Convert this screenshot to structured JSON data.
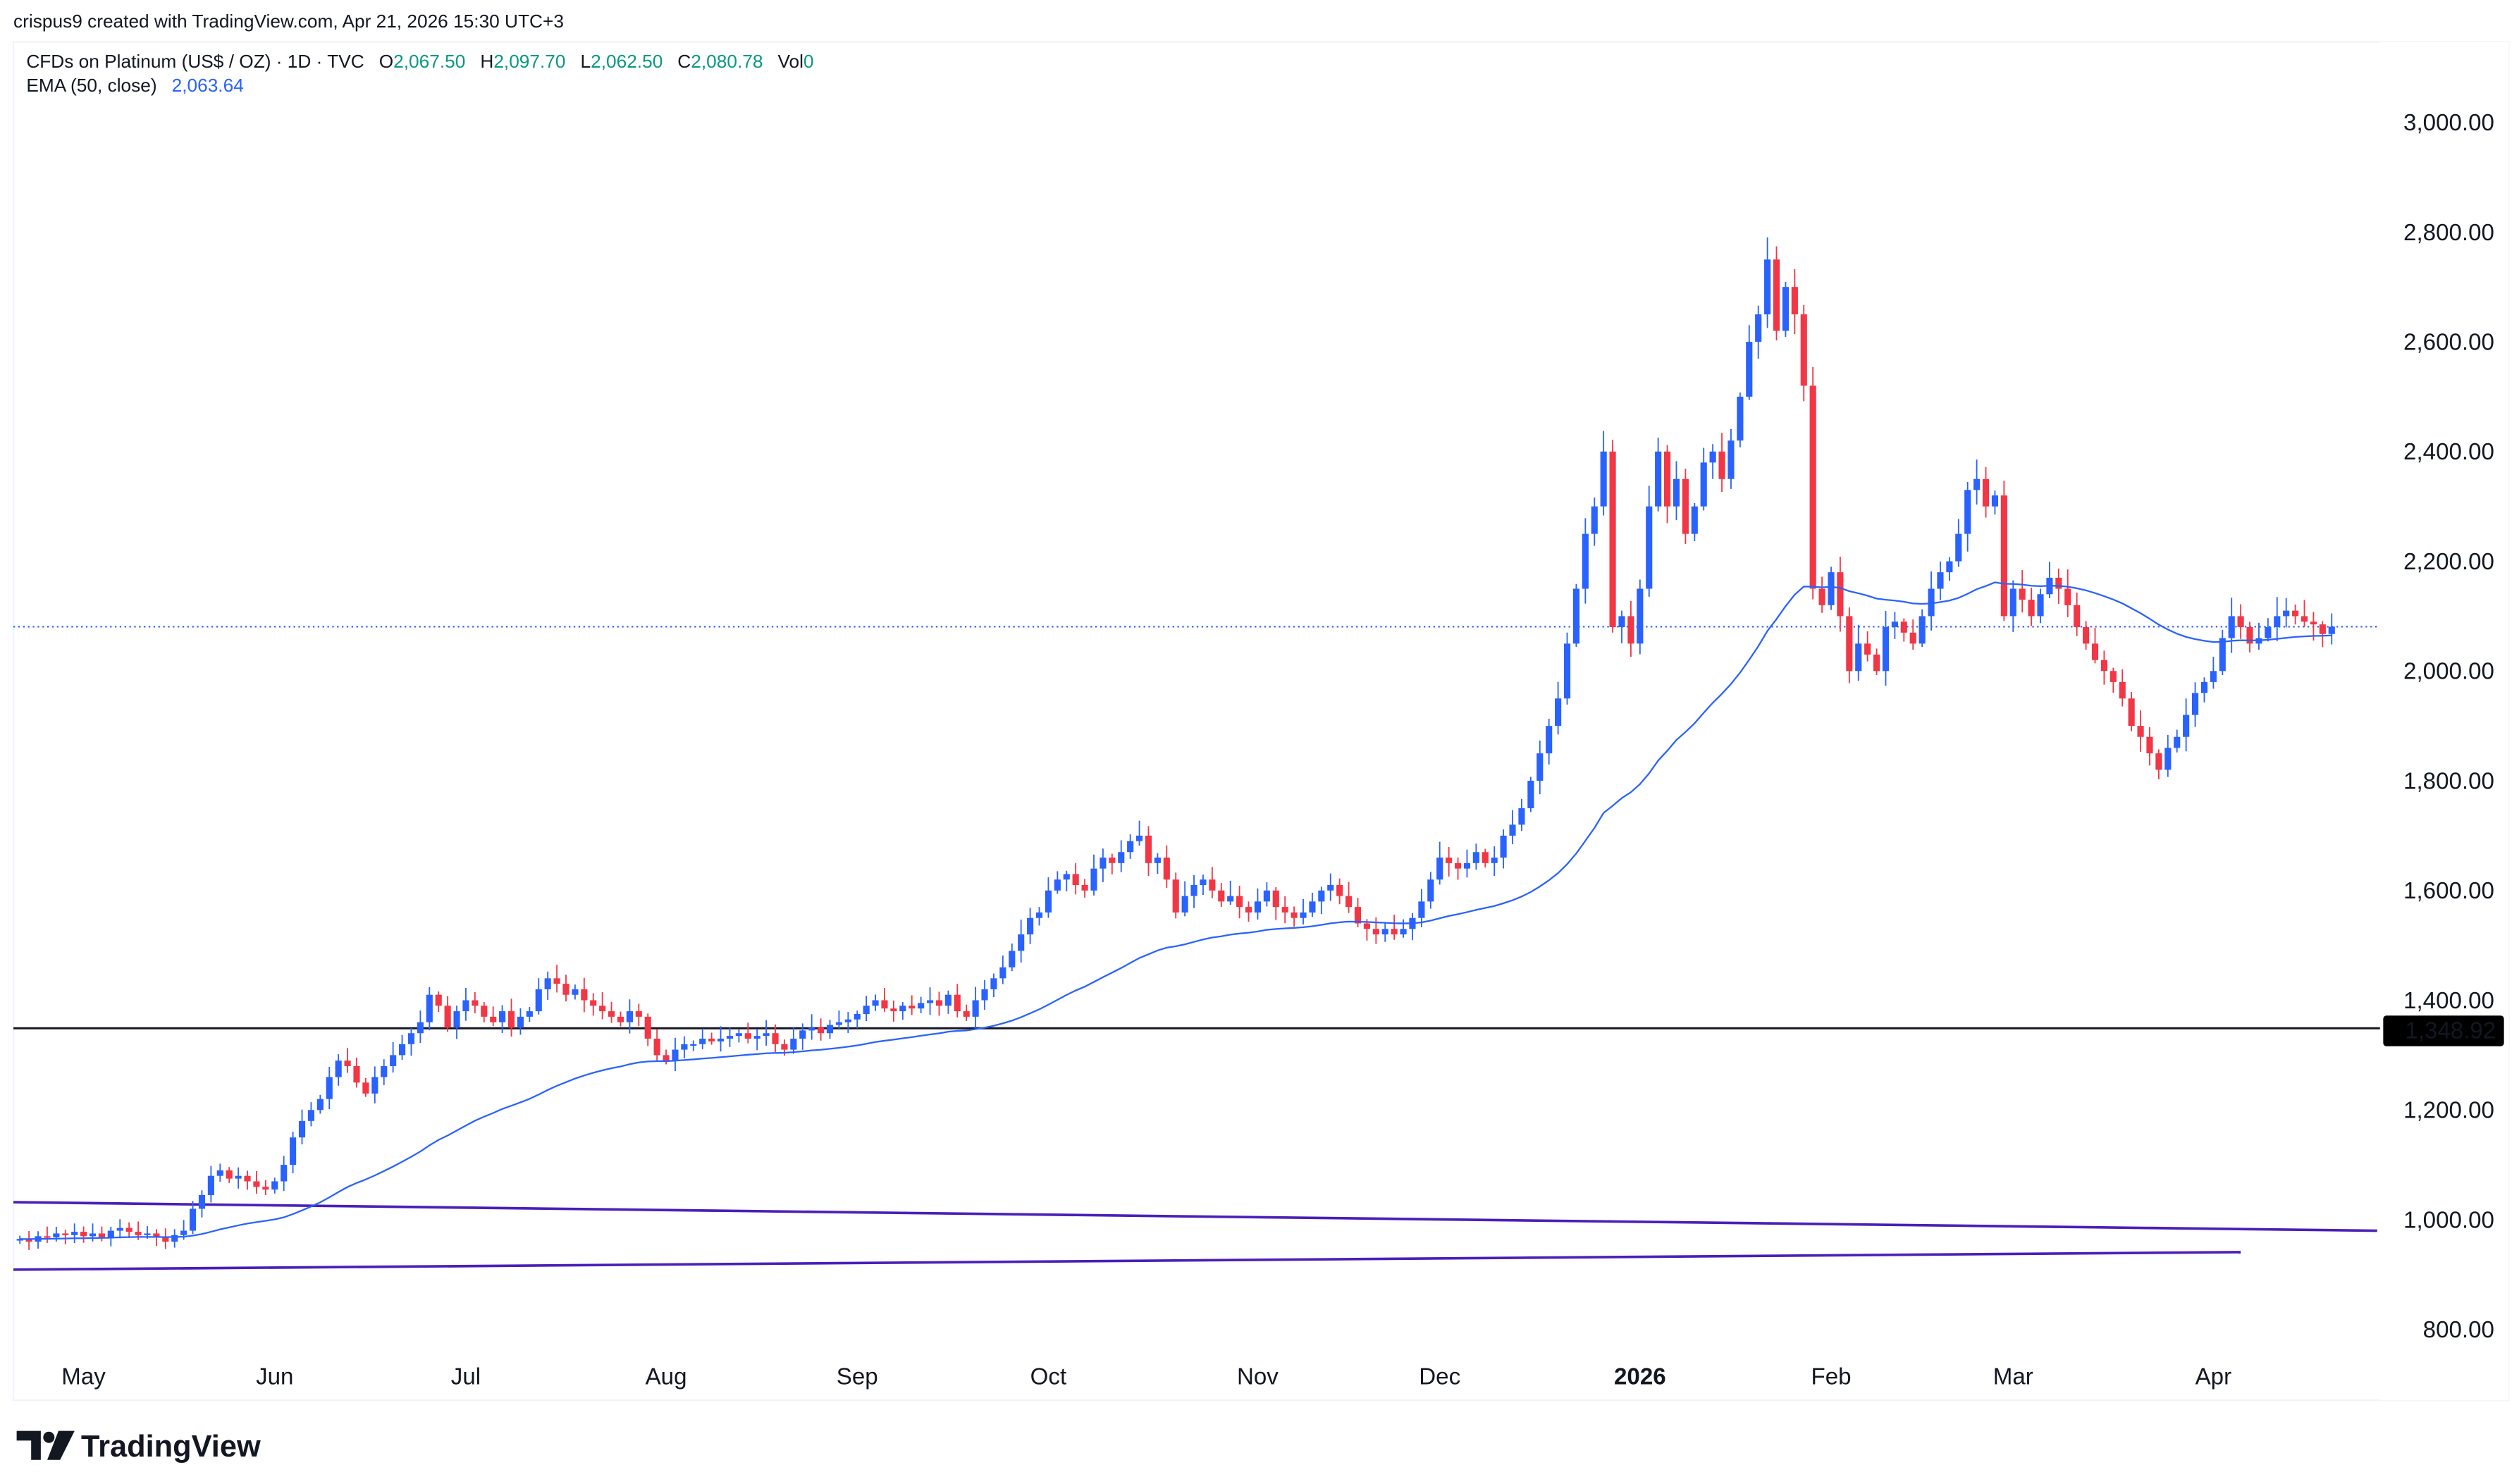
{
  "header": {
    "credit": "crispus9 created with TradingView.com, Apr 21, 2026 15:30 UTC+3",
    "symbol": "CFDs on Platinum (US$ / OZ) · 1D · TVC",
    "o_label": "O",
    "o_value": "2,067.50",
    "h_label": "H",
    "h_value": "2,097.70",
    "l_label": "L",
    "l_value": "2,062.50",
    "c_label": "C",
    "c_value": "2,080.78",
    "vol_label": "Vol",
    "vol_value": "0",
    "ema_label": "EMA (50, close)",
    "ema_value": "2,063.64"
  },
  "logo": {
    "text": "TradingView"
  },
  "colors": {
    "up": "#2962ff",
    "down": "#f23645",
    "ema": "#2962ff",
    "value_green": "#089981",
    "trendline": "#4a1fb8",
    "hline": "#131722"
  },
  "chart_data": {
    "type": "candlestick",
    "title": "CFDs on Platinum (US$ / OZ) · 1D · TVC",
    "ylim": [
      760,
      3100
    ],
    "y_ticks": [
      "3,000.00",
      "2,800.00",
      "2,600.00",
      "2,400.00",
      "2,200.00",
      "2,000.00",
      "1,800.00",
      "1,600.00",
      "1,400.00",
      "1,200.00",
      "1,000.00",
      "800.00"
    ],
    "y_tick_values": [
      3000,
      2800,
      2600,
      2400,
      2200,
      2000,
      1800,
      1600,
      1400,
      1200,
      1000,
      800
    ],
    "x_ticks": [
      {
        "label": "May",
        "index": 7
      },
      {
        "label": "Jun",
        "index": 28
      },
      {
        "label": "Jul",
        "index": 49
      },
      {
        "label": "Aug",
        "index": 71
      },
      {
        "label": "Sep",
        "index": 92
      },
      {
        "label": "Oct",
        "index": 113
      },
      {
        "label": "Nov",
        "index": 136
      },
      {
        "label": "Dec",
        "index": 156
      },
      {
        "label": "2026",
        "index": 178,
        "bold": true
      },
      {
        "label": "Feb",
        "index": 199
      },
      {
        "label": "Mar",
        "index": 219
      },
      {
        "label": "Apr",
        "index": 241
      }
    ],
    "closes": [
      965,
      960,
      970,
      968,
      975,
      972,
      978,
      970,
      975,
      968,
      980,
      985,
      978,
      972,
      975,
      968,
      960,
      972,
      980,
      1020,
      1045,
      1080,
      1090,
      1075,
      1080,
      1070,
      1060,
      1055,
      1070,
      1100,
      1150,
      1180,
      1200,
      1220,
      1260,
      1290,
      1280,
      1250,
      1230,
      1260,
      1280,
      1300,
      1320,
      1340,
      1360,
      1410,
      1390,
      1350,
      1380,
      1400,
      1390,
      1370,
      1360,
      1380,
      1350,
      1370,
      1380,
      1420,
      1440,
      1430,
      1410,
      1420,
      1400,
      1390,
      1380,
      1370,
      1360,
      1380,
      1370,
      1330,
      1300,
      1290,
      1310,
      1320,
      1320,
      1330,
      1325,
      1330,
      1335,
      1340,
      1330,
      1335,
      1340,
      1320,
      1310,
      1330,
      1345,
      1350,
      1340,
      1355,
      1360,
      1365,
      1375,
      1390,
      1400,
      1385,
      1380,
      1390,
      1385,
      1395,
      1400,
      1390,
      1410,
      1380,
      1370,
      1400,
      1420,
      1440,
      1460,
      1490,
      1520,
      1550,
      1560,
      1600,
      1620,
      1630,
      1610,
      1600,
      1640,
      1660,
      1650,
      1670,
      1690,
      1700,
      1650,
      1660,
      1620,
      1560,
      1590,
      1610,
      1620,
      1600,
      1580,
      1590,
      1570,
      1560,
      1580,
      1600,
      1570,
      1560,
      1550,
      1560,
      1580,
      1600,
      1610,
      1590,
      1570,
      1540,
      1530,
      1520,
      1530,
      1520,
      1530,
      1550,
      1580,
      1620,
      1660,
      1650,
      1640,
      1650,
      1670,
      1650,
      1660,
      1700,
      1720,
      1750,
      1800,
      1850,
      1900,
      1950,
      2050,
      2150,
      2250,
      2300,
      2400,
      2080,
      2100,
      2050,
      2150,
      2300,
      2400,
      2300,
      2350,
      2250,
      2300,
      2380,
      2400,
      2350,
      2420,
      2500,
      2600,
      2650,
      2750,
      2620,
      2700,
      2650,
      2520,
      2150,
      2120,
      2180,
      2100,
      2000,
      2050,
      2030,
      2000,
      2080,
      2090,
      2070,
      2050,
      2100,
      2150,
      2180,
      2200,
      2250,
      2330,
      2350,
      2300,
      2320,
      2100,
      2150,
      2130,
      2100,
      2140,
      2170,
      2150,
      2120,
      2080,
      2050,
      2020,
      2000,
      1980,
      1950,
      1900,
      1880,
      1850,
      1820,
      1860,
      1880,
      1920,
      1960,
      1980,
      2000,
      2060,
      2100,
      2080,
      2050,
      2060,
      2080,
      2100,
      2110,
      2100,
      2090,
      2085,
      2067.5,
      2080.78
    ],
    "ema_period": 50,
    "last_price": 2080.78,
    "horizontal_line": {
      "value": 1348.92,
      "label": "1,348.92"
    },
    "trendlines": [
      {
        "name": "upper",
        "from": {
          "index": 0,
          "price": 1032
        },
        "to": {
          "index": 259,
          "price": 980
        }
      },
      {
        "name": "lower",
        "from": {
          "index": 0,
          "price": 909
        },
        "to": {
          "index": 244,
          "price": 941
        }
      }
    ]
  }
}
